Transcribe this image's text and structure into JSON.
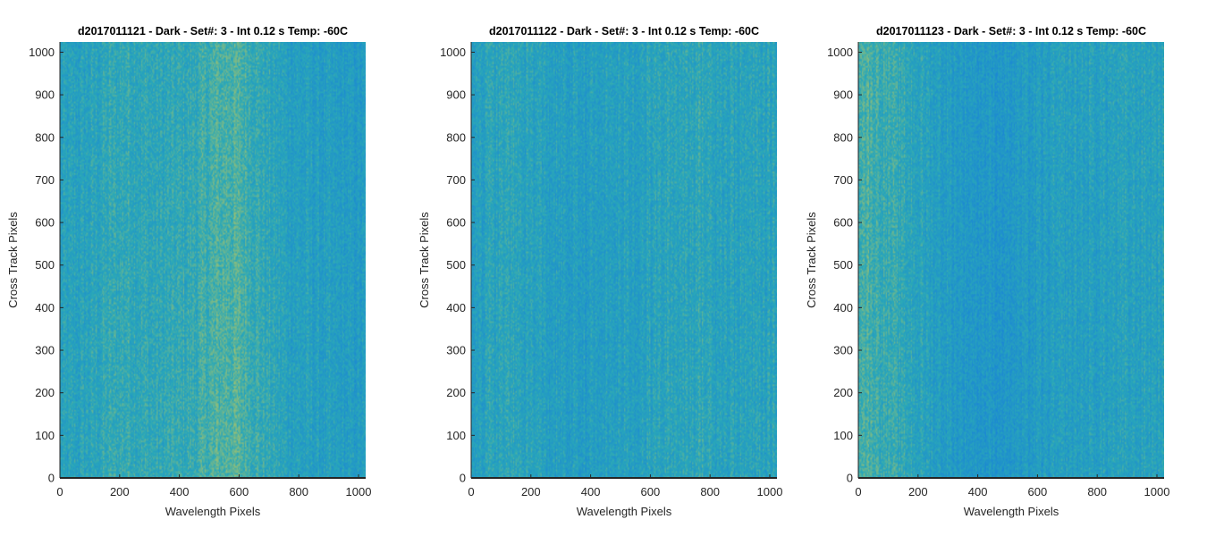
{
  "chart_data": [
    {
      "type": "heatmap",
      "title": "d2017011121 - Dark - Set#: 3 - Int 0.12 s Temp: -60C",
      "xlabel": "Wavelength Pixels",
      "ylabel": "Cross Track Pixels",
      "xlim": [
        0,
        1024
      ],
      "ylim": [
        0,
        1024
      ],
      "xticks": [
        0,
        200,
        400,
        600,
        800,
        1000
      ],
      "yticks": [
        0,
        100,
        200,
        300,
        400,
        500,
        600,
        700,
        800,
        900,
        1000
      ],
      "x_profile": [
        0.3,
        0.32,
        0.34,
        0.37,
        0.42,
        0.47,
        0.5,
        0.52,
        0.48,
        0.45,
        0.44,
        0.46,
        0.48,
        0.5,
        0.55,
        0.62,
        0.7,
        0.74,
        0.72,
        0.65,
        0.55,
        0.45,
        0.38,
        0.33,
        0.29,
        0.26,
        0.24,
        0.22,
        0.2,
        0.19,
        0.18,
        0.18
      ],
      "y_profile": [
        0.52,
        0.52,
        0.51,
        0.5,
        0.5,
        0.49,
        0.48,
        0.47,
        0.47,
        0.46,
        0.46,
        0.46
      ]
    },
    {
      "type": "heatmap",
      "title": "d2017011122 - Dark - Set#: 3 - Int 0.12 s Temp: -60C",
      "xlabel": "Wavelength Pixels",
      "ylabel": "Cross Track Pixels",
      "xlim": [
        0,
        1024
      ],
      "ylim": [
        0,
        1024
      ],
      "xticks": [
        0,
        200,
        400,
        600,
        800,
        1000
      ],
      "yticks": [
        0,
        100,
        200,
        300,
        400,
        500,
        600,
        700,
        800,
        900,
        1000
      ],
      "x_profile": [
        0.36,
        0.4,
        0.42,
        0.44,
        0.45,
        0.44,
        0.4,
        0.36,
        0.32,
        0.3,
        0.28,
        0.28,
        0.29,
        0.3,
        0.32,
        0.34,
        0.36,
        0.38,
        0.4,
        0.42,
        0.44,
        0.47,
        0.5,
        0.5,
        0.48,
        0.46,
        0.43,
        0.41,
        0.4,
        0.4,
        0.41,
        0.42
      ],
      "y_profile": [
        0.42,
        0.42,
        0.41,
        0.4,
        0.4,
        0.4,
        0.41,
        0.41,
        0.42,
        0.43,
        0.44,
        0.45
      ]
    },
    {
      "type": "heatmap",
      "title": "d2017011123 - Dark - Set#: 3 - Int 0.12 s Temp: -60C",
      "xlabel": "Wavelength Pixels",
      "ylabel": "Cross Track Pixels",
      "xlim": [
        0,
        1024
      ],
      "ylim": [
        0,
        1024
      ],
      "xticks": [
        0,
        200,
        400,
        600,
        800,
        1000
      ],
      "yticks": [
        0,
        100,
        200,
        300,
        400,
        500,
        600,
        700,
        800,
        900,
        1000
      ],
      "x_profile": [
        0.78,
        0.72,
        0.65,
        0.58,
        0.52,
        0.48,
        0.42,
        0.36,
        0.3,
        0.25,
        0.21,
        0.18,
        0.15,
        0.13,
        0.12,
        0.13,
        0.15,
        0.18,
        0.22,
        0.25,
        0.28,
        0.3,
        0.31,
        0.32,
        0.33,
        0.34,
        0.35,
        0.36,
        0.37,
        0.38,
        0.39,
        0.4
      ],
      "y_profile": [
        0.43,
        0.43,
        0.42,
        0.42,
        0.42,
        0.42,
        0.43,
        0.43,
        0.44,
        0.45,
        0.46,
        0.47
      ]
    }
  ],
  "colors": {
    "colormap_low": "#1a85d6",
    "colormap_mid": "#2aa8b8",
    "colormap_high": "#c2c85a",
    "axis": "#262626",
    "text": "#000000"
  }
}
